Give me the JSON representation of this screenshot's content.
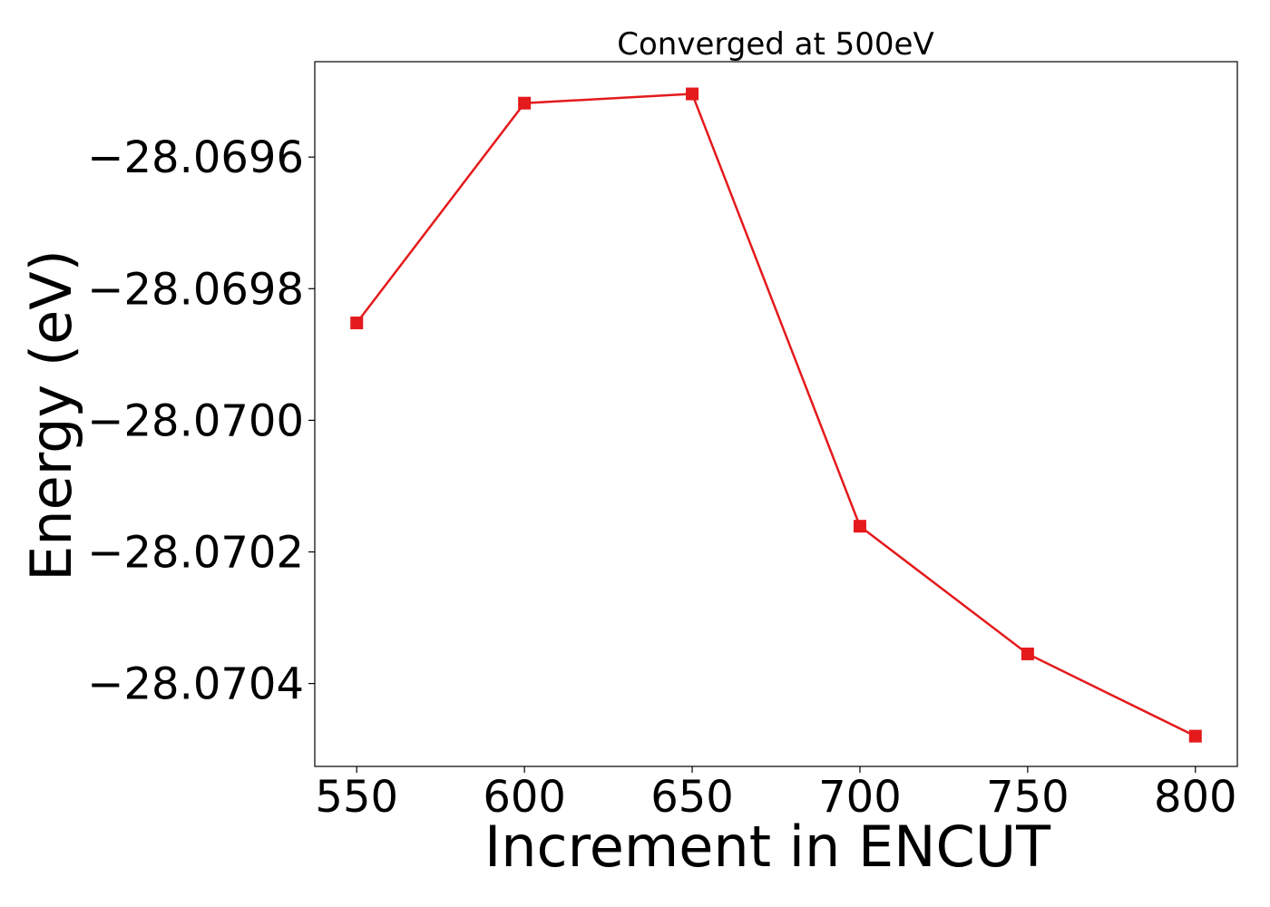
{
  "chart_data": {
    "type": "line",
    "title": "Converged at 500eV",
    "xlabel": "Increment in ENCUT",
    "ylabel": "Energy (eV)",
    "x": [
      550,
      600,
      650,
      700,
      750,
      800
    ],
    "series": [
      {
        "values": [
          -28.069852,
          -28.069518,
          -28.069504,
          -28.070161,
          -28.070355,
          -28.07048
        ],
        "color": "#e41a1c",
        "marker": "square"
      }
    ],
    "xticks": [
      550,
      600,
      650,
      700,
      750,
      800
    ],
    "xtick_labels": [
      "550",
      "600",
      "650",
      "700",
      "750",
      "800"
    ],
    "yticks": [
      -28.0696,
      -28.0698,
      -28.07,
      -28.0702,
      -28.0704
    ],
    "ytick_labels": [
      "−28.0696",
      "−28.0698",
      "−28.0700",
      "−28.0702",
      "−28.0704"
    ],
    "xlim": [
      537.5,
      812.5
    ],
    "ylim": [
      -28.070526,
      -28.069455
    ],
    "grid": false,
    "legend": false
  }
}
